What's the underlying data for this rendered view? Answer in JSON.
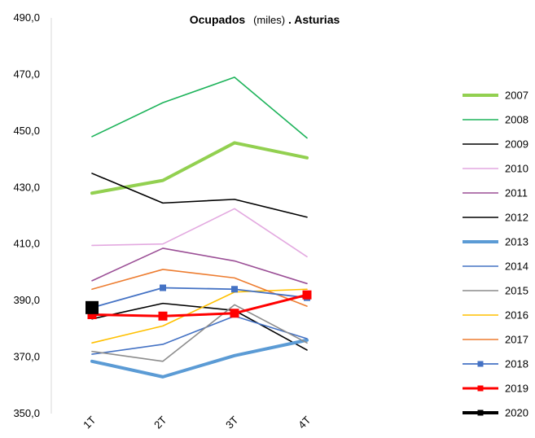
{
  "chart_data": {
    "type": "line",
    "title_parts": [
      "Ocupados",
      "(miles)",
      ". Asturias"
    ],
    "xlabel": "",
    "ylabel": "",
    "categories": [
      "1T",
      "2T",
      "3T",
      "4T"
    ],
    "ylim": [
      350,
      490
    ],
    "yticks": [
      "490,0",
      "470,0",
      "450,0",
      "430,0",
      "410,0",
      "390,0",
      "370,0",
      "350,0"
    ],
    "ytick_values": [
      490,
      470,
      450,
      430,
      410,
      390,
      370,
      350
    ],
    "grid": false,
    "legend_position": "right",
    "series": [
      {
        "name": "2007",
        "color": "#92D050",
        "style": "thick",
        "values": [
          428.0,
          432.5,
          445.8,
          440.5
        ]
      },
      {
        "name": "2008",
        "color": "#1DB35A",
        "style": "normal",
        "values": [
          448.0,
          460.0,
          469.0,
          447.5
        ]
      },
      {
        "name": "2009",
        "color": "#000000",
        "style": "normal",
        "values": [
          435.0,
          424.5,
          425.8,
          419.5
        ]
      },
      {
        "name": "2010",
        "color": "#E3A9E0",
        "style": "normal",
        "values": [
          409.5,
          410.0,
          422.5,
          405.5
        ]
      },
      {
        "name": "2011",
        "color": "#9B4F96",
        "style": "normal",
        "values": [
          397.0,
          408.5,
          404.0,
          396.0
        ]
      },
      {
        "name": "2012",
        "color": "#000000",
        "style": "normal",
        "values": [
          383.5,
          389.0,
          386.5,
          372.5
        ]
      },
      {
        "name": "2013",
        "color": "#5B9BD5",
        "style": "thick",
        "values": [
          368.5,
          363.0,
          370.5,
          376.0
        ]
      },
      {
        "name": "2014",
        "color": "#4472C4",
        "style": "normal",
        "values": [
          371.0,
          374.5,
          384.5,
          376.5
        ]
      },
      {
        "name": "2015",
        "color": "#8C8C8C",
        "style": "normal",
        "values": [
          372.0,
          368.5,
          388.5,
          375.0
        ]
      },
      {
        "name": "2016",
        "color": "#FFC000",
        "style": "normal",
        "values": [
          375.0,
          381.0,
          393.0,
          394.0
        ]
      },
      {
        "name": "2017",
        "color": "#ED7D31",
        "style": "normal",
        "values": [
          394.0,
          401.0,
          398.0,
          388.0
        ]
      },
      {
        "name": "2018",
        "color": "#4472C4",
        "style": "marker",
        "values": [
          387.5,
          394.5,
          394.0,
          391.0
        ]
      },
      {
        "name": "2019",
        "color": "#FF0000",
        "style": "marker-thick",
        "values": [
          385.0,
          384.5,
          385.5,
          392.0
        ]
      },
      {
        "name": "2020",
        "color": "#000000",
        "style": "marker-bold",
        "values": [
          387.5,
          null,
          null,
          null
        ]
      }
    ]
  }
}
